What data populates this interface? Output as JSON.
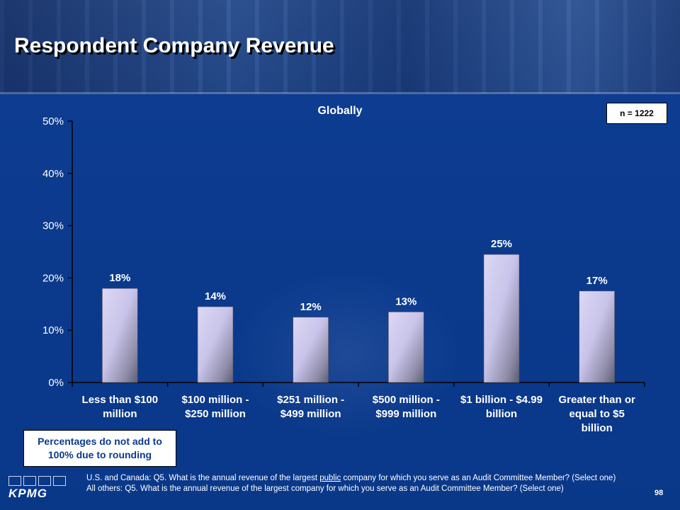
{
  "title": "Respondent Company Revenue",
  "n_label": "n = 1222",
  "note": "Percentages do not add to 100% due to rounding",
  "footnote": {
    "line1_before": "U.S. and Canada: Q5. What is the annual revenue of the largest ",
    "line1_underlined": "public",
    "line1_after": " company for which you serve as an Audit Committee Member? (Select one)",
    "line2": "All others: Q5. What is the annual revenue of the largest company for which you serve as an Audit Committee Member? (Select one)"
  },
  "logo_text": "KPMG",
  "page_number": "98",
  "colors": {
    "background": "#0b3a8e",
    "bar_light": "#d9d4f2",
    "bar_dark": "#6a6a86"
  },
  "chart_data": {
    "type": "bar",
    "title": "Globally",
    "categories": [
      [
        "Less than $100",
        "million"
      ],
      [
        "$100 million -",
        "$250 million"
      ],
      [
        "$251 million -",
        "$499 million"
      ],
      [
        "$500 million -",
        "$999 million"
      ],
      [
        "$1 billion - $4.99",
        "billion"
      ],
      [
        "Greater than or",
        "equal to $5",
        "billion"
      ]
    ],
    "values": [
      18,
      14.5,
      12.5,
      13.5,
      24.5,
      17.5
    ],
    "data_labels": [
      "18%",
      "14%",
      "12%",
      "13%",
      "25%",
      "17%"
    ],
    "yticks": [
      "0%",
      "10%",
      "20%",
      "30%",
      "40%",
      "50%"
    ],
    "ylim": [
      0,
      50
    ],
    "grid": false,
    "xlabel": "",
    "ylabel": ""
  }
}
